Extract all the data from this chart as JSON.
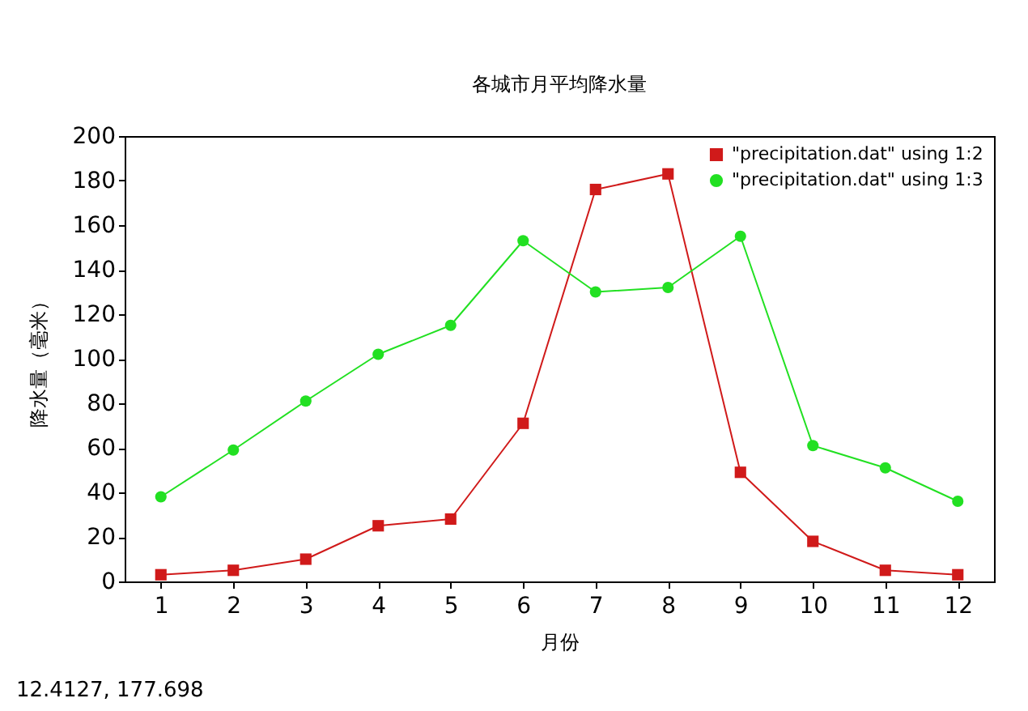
{
  "chart_data": {
    "type": "line",
    "title": "各城市月平均降水量",
    "xlabel": "月份",
    "ylabel": "降水量（毫米）",
    "x": [
      1,
      2,
      3,
      4,
      5,
      6,
      7,
      8,
      9,
      10,
      11,
      12
    ],
    "series": [
      {
        "name": "\"precipitation.dat\" using 1:2",
        "color": "#d01a1a",
        "marker": "square",
        "values": [
          3,
          5,
          10,
          25,
          28,
          71,
          176,
          183,
          49,
          18,
          5,
          3
        ]
      },
      {
        "name": "\"precipitation.dat\" using 1:3",
        "color": "#22e022",
        "marker": "circle",
        "values": [
          38,
          59,
          81,
          102,
          115,
          153,
          130,
          132,
          155,
          61,
          51,
          36
        ]
      }
    ],
    "xlim": [
      0.5,
      12.5
    ],
    "xticks": [
      1,
      2,
      3,
      4,
      5,
      6,
      7,
      8,
      9,
      10,
      11,
      12
    ],
    "ylim": [
      0,
      200
    ],
    "yticks": [
      0,
      20,
      40,
      60,
      80,
      100,
      120,
      140,
      160,
      180,
      200
    ],
    "grid": false,
    "legend": "top right",
    "annotations": [
      "12.4127, 177.698"
    ]
  }
}
